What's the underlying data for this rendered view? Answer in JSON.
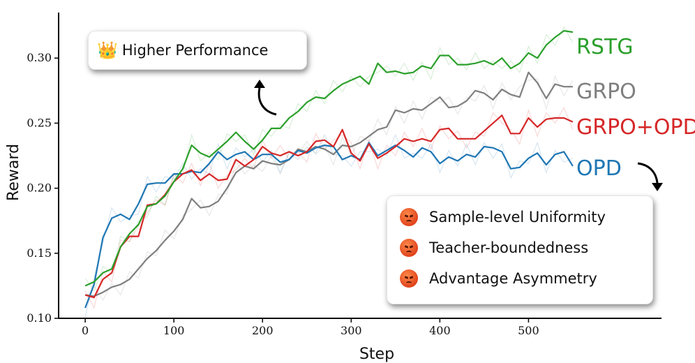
{
  "chart_data": {
    "type": "line",
    "xlabel": "Step",
    "ylabel": "Reward",
    "xlim": [
      -30,
      650
    ],
    "ylim": [
      0.1,
      0.335
    ],
    "xticks": [
      0,
      100,
      200,
      300,
      400,
      500
    ],
    "yticks": [
      0.1,
      0.15,
      0.2,
      0.25,
      0.3
    ],
    "ytick_labels": [
      "0.10",
      "0.15",
      "0.20",
      "0.25",
      "0.30"
    ],
    "grid": false,
    "series": [
      {
        "name": "RSTG",
        "color": "#2ca02c",
        "x": [
          0,
          10,
          20,
          30,
          40,
          50,
          60,
          70,
          80,
          90,
          100,
          110,
          120,
          130,
          140,
          150,
          160,
          170,
          180,
          190,
          200,
          210,
          220,
          230,
          240,
          250,
          260,
          270,
          280,
          290,
          300,
          310,
          320,
          330,
          340,
          350,
          360,
          370,
          380,
          390,
          400,
          410,
          420,
          430,
          440,
          450,
          460,
          470,
          480,
          490,
          500,
          510,
          520,
          530,
          540,
          550
        ],
        "values": [
          0.125,
          0.128,
          0.135,
          0.138,
          0.155,
          0.165,
          0.172,
          0.186,
          0.188,
          0.194,
          0.205,
          0.215,
          0.233,
          0.227,
          0.224,
          0.23,
          0.236,
          0.243,
          0.236,
          0.23,
          0.237,
          0.246,
          0.246,
          0.254,
          0.259,
          0.266,
          0.27,
          0.269,
          0.275,
          0.28,
          0.283,
          0.286,
          0.28,
          0.296,
          0.289,
          0.29,
          0.288,
          0.289,
          0.294,
          0.292,
          0.302,
          0.302,
          0.295,
          0.295,
          0.296,
          0.298,
          0.295,
          0.3,
          0.292,
          0.296,
          0.304,
          0.3,
          0.31,
          0.316,
          0.321,
          0.32
        ]
      },
      {
        "name": "GRPO",
        "color": "#7f7f7f",
        "x": [
          0,
          10,
          20,
          30,
          40,
          50,
          60,
          70,
          80,
          90,
          100,
          110,
          120,
          130,
          140,
          150,
          160,
          170,
          180,
          190,
          200,
          210,
          220,
          230,
          240,
          250,
          260,
          270,
          280,
          290,
          300,
          310,
          320,
          330,
          340,
          350,
          360,
          370,
          380,
          390,
          400,
          410,
          420,
          430,
          440,
          450,
          460,
          470,
          480,
          490,
          500,
          510,
          520,
          530,
          540,
          550
        ],
        "values": [
          0.118,
          0.117,
          0.12,
          0.124,
          0.126,
          0.13,
          0.138,
          0.146,
          0.152,
          0.16,
          0.167,
          0.176,
          0.192,
          0.185,
          0.186,
          0.19,
          0.2,
          0.212,
          0.217,
          0.215,
          0.221,
          0.219,
          0.218,
          0.222,
          0.23,
          0.228,
          0.232,
          0.23,
          0.226,
          0.233,
          0.232,
          0.235,
          0.24,
          0.245,
          0.247,
          0.26,
          0.258,
          0.261,
          0.26,
          0.265,
          0.27,
          0.262,
          0.263,
          0.267,
          0.275,
          0.273,
          0.268,
          0.276,
          0.272,
          0.27,
          0.289,
          0.281,
          0.269,
          0.28,
          0.278,
          0.278
        ]
      },
      {
        "name": "GRPO+OPD",
        "color": "#d62728",
        "x": [
          0,
          10,
          20,
          30,
          40,
          50,
          60,
          70,
          80,
          90,
          100,
          110,
          120,
          130,
          140,
          150,
          160,
          170,
          180,
          190,
          200,
          210,
          220,
          230,
          240,
          250,
          260,
          270,
          280,
          290,
          300,
          310,
          320,
          330,
          340,
          350,
          360,
          370,
          380,
          390,
          400,
          410,
          420,
          430,
          440,
          450,
          460,
          470,
          480,
          490,
          500,
          510,
          520,
          530,
          540,
          550
        ],
        "values": [
          0.118,
          0.116,
          0.13,
          0.135,
          0.155,
          0.163,
          0.163,
          0.187,
          0.188,
          0.195,
          0.205,
          0.211,
          0.214,
          0.206,
          0.211,
          0.206,
          0.207,
          0.222,
          0.217,
          0.222,
          0.232,
          0.227,
          0.225,
          0.228,
          0.225,
          0.228,
          0.236,
          0.237,
          0.232,
          0.245,
          0.227,
          0.221,
          0.234,
          0.223,
          0.227,
          0.232,
          0.238,
          0.236,
          0.238,
          0.236,
          0.245,
          0.246,
          0.238,
          0.238,
          0.238,
          0.244,
          0.25,
          0.256,
          0.242,
          0.242,
          0.254,
          0.247,
          0.253,
          0.254,
          0.254,
          0.251
        ]
      },
      {
        "name": "OPD",
        "color": "#1f77b4",
        "x": [
          0,
          10,
          20,
          30,
          40,
          50,
          60,
          70,
          80,
          90,
          100,
          110,
          120,
          130,
          140,
          150,
          160,
          170,
          180,
          190,
          200,
          210,
          220,
          230,
          240,
          250,
          260,
          270,
          280,
          290,
          300,
          310,
          320,
          330,
          340,
          350,
          360,
          370,
          380,
          390,
          400,
          410,
          420,
          430,
          440,
          450,
          460,
          470,
          480,
          490,
          500,
          510,
          520,
          530,
          540,
          550
        ],
        "values": [
          0.108,
          0.126,
          0.162,
          0.177,
          0.18,
          0.176,
          0.188,
          0.203,
          0.204,
          0.204,
          0.211,
          0.211,
          0.213,
          0.212,
          0.219,
          0.228,
          0.222,
          0.226,
          0.228,
          0.222,
          0.226,
          0.226,
          0.22,
          0.222,
          0.229,
          0.227,
          0.231,
          0.233,
          0.232,
          0.222,
          0.225,
          0.222,
          0.235,
          0.225,
          0.229,
          0.233,
          0.229,
          0.224,
          0.231,
          0.228,
          0.219,
          0.224,
          0.221,
          0.226,
          0.224,
          0.232,
          0.231,
          0.228,
          0.215,
          0.216,
          0.223,
          0.227,
          0.218,
          0.226,
          0.228,
          0.217
        ]
      }
    ],
    "annotations": {
      "performance_box": {
        "icon": "crown-icon",
        "text": "Higher Performance"
      },
      "issues_box": {
        "icon": "angry-face-icon",
        "items": [
          "Sample-level Uniformity",
          "Teacher-boundedness",
          "Advantage Asymmetry"
        ]
      }
    }
  }
}
